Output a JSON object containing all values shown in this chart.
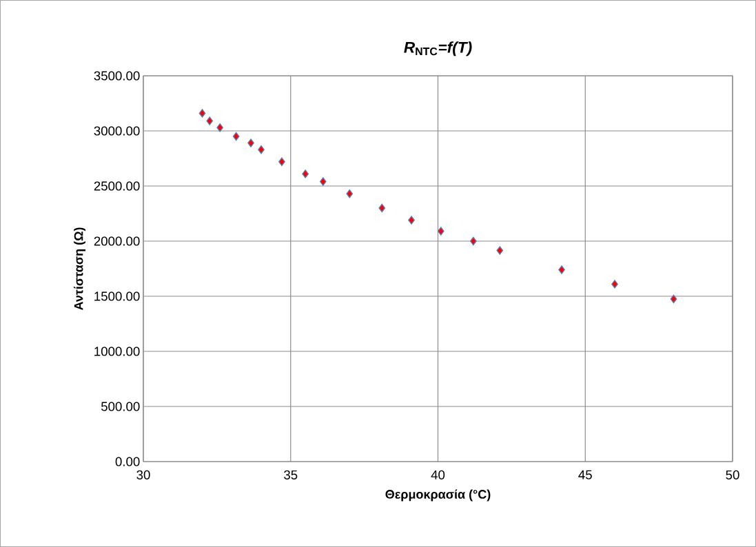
{
  "chart_data": {
    "type": "scatter",
    "title": "*R*$_{NTC}$*=f(T)*",
    "xlabel": "Θερμοκρασία (°C)",
    "ylabel": "Αντίσταση (Ω)",
    "x": [
      32.0,
      32.25,
      32.6,
      33.15,
      33.65,
      34.0,
      34.7,
      35.5,
      36.1,
      37.0,
      38.1,
      39.1,
      40.1,
      41.2,
      42.1,
      44.2,
      46.0,
      48.0
    ],
    "values": [
      3160,
      3090,
      3030,
      2950,
      2890,
      2830,
      2720,
      2610,
      2540,
      2430,
      2300,
      2190,
      2090,
      2000,
      1915,
      1740,
      1610,
      1475
    ],
    "color": "#ff0000",
    "marker": "diamond",
    "grid": true,
    "xlim": [
      30,
      50
    ],
    "xticks": [
      30,
      35,
      40,
      45,
      50
    ],
    "ylim": [
      0,
      3500
    ],
    "yticks": [
      {
        "value": 0,
        "label": "0.00"
      },
      {
        "value": 500,
        "label": "500.00"
      },
      {
        "value": 1000,
        "label": "1000.00"
      },
      {
        "value": 1500,
        "label": "1500.00"
      },
      {
        "value": 2000,
        "label": "2000.00"
      },
      {
        "value": 2500,
        "label": "2500.00"
      },
      {
        "value": 3000,
        "label": "3000.00"
      },
      {
        "value": 3500,
        "label": "3500.00"
      }
    ]
  }
}
